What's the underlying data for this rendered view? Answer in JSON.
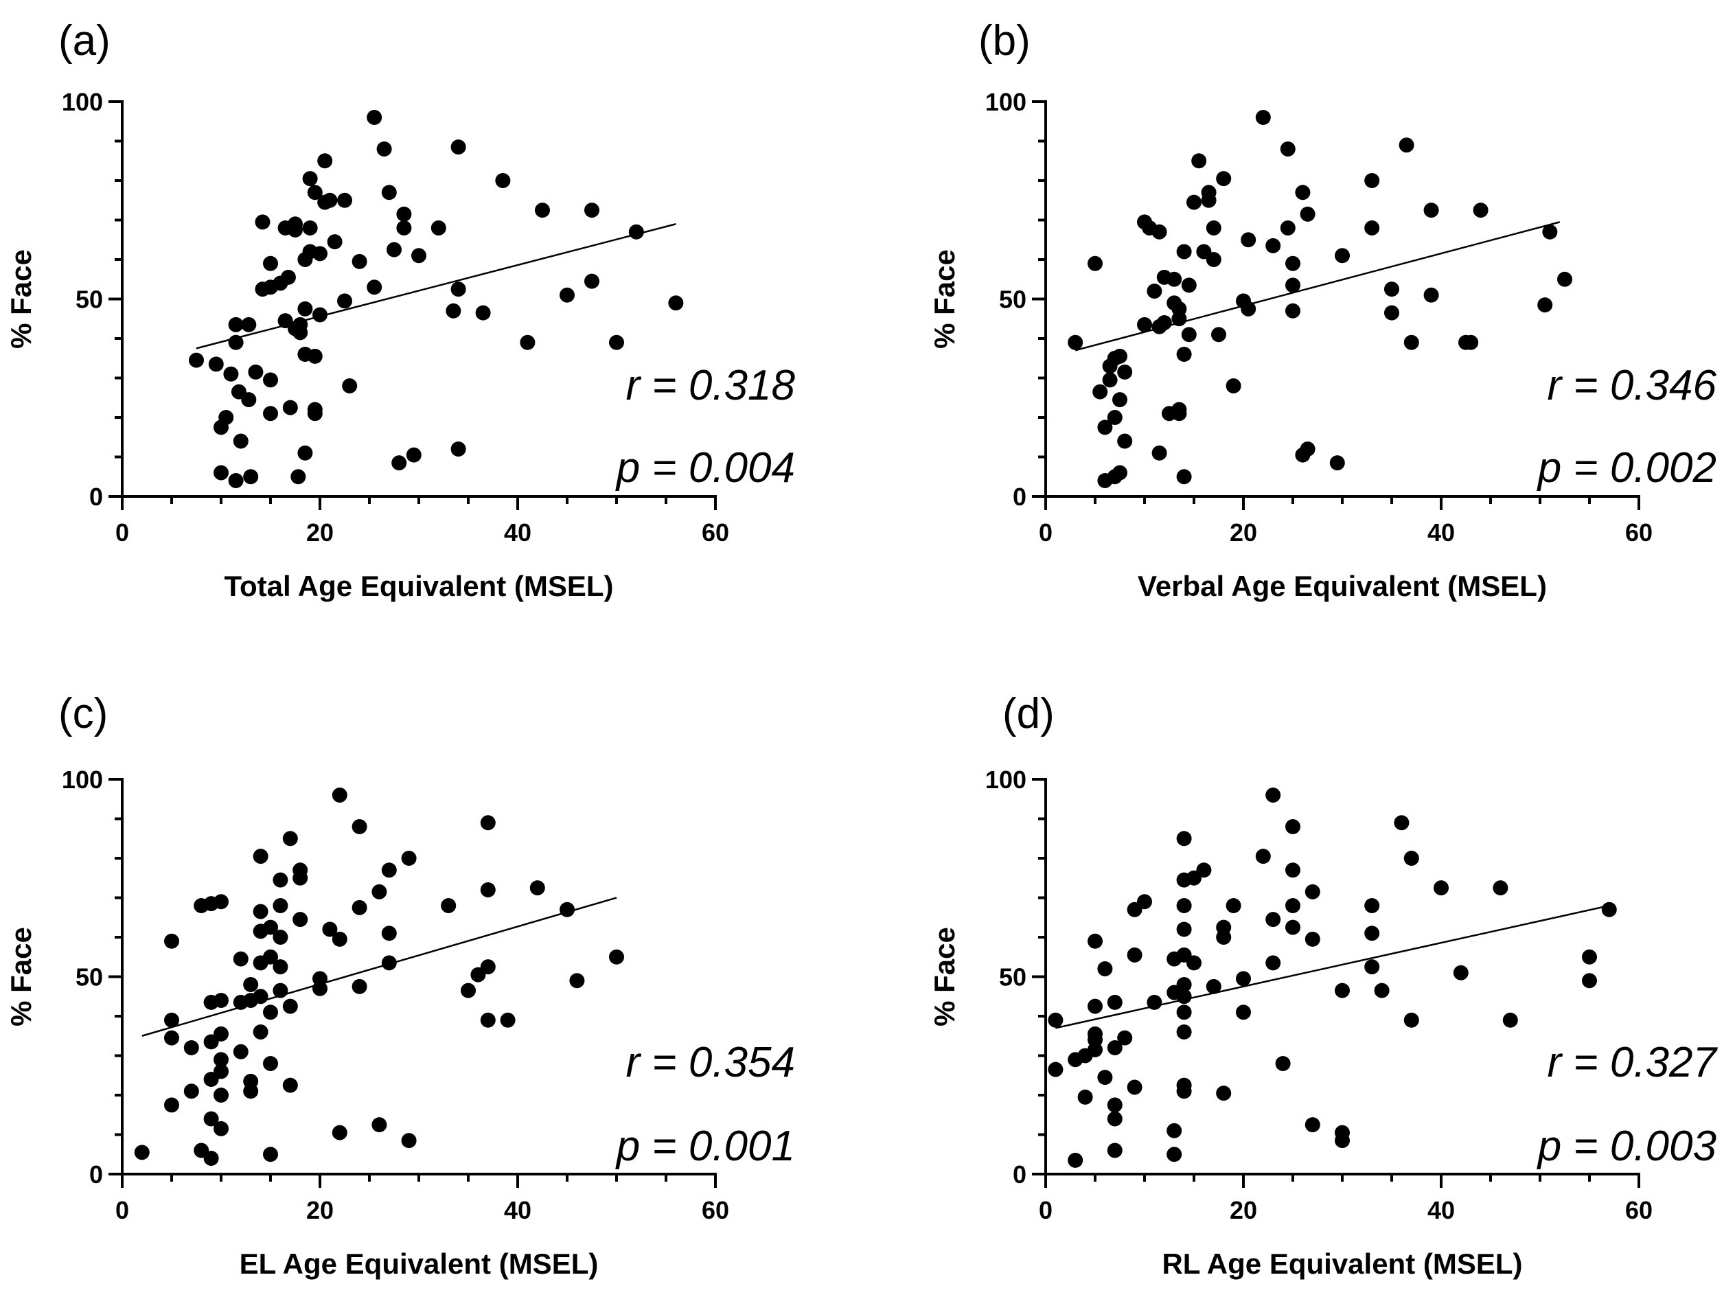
{
  "chart_data": [
    {
      "type": "scatter",
      "panel_label": "(a)",
      "xlabel": "Total Age Equivalent (MSEL)",
      "ylabel": "% Face",
      "xlim": [
        0,
        60
      ],
      "ylim": [
        0,
        100
      ],
      "xticks": [
        0,
        20,
        40,
        60
      ],
      "yticks": [
        0,
        50,
        100
      ],
      "xtick_labels": [
        "0",
        "20",
        "40",
        "60"
      ],
      "ytick_labels": [
        "0",
        "50",
        "100"
      ],
      "r_text": "r = 0.318",
      "p_text": "p = 0.004",
      "fit_line": {
        "x": [
          7.5,
          56
        ],
        "y": [
          37.5,
          69
        ]
      },
      "points": [
        [
          7.5,
          34.5
        ],
        [
          9.5,
          33.5
        ],
        [
          10,
          17.5
        ],
        [
          10.5,
          20
        ],
        [
          10,
          6
        ],
        [
          11,
          31
        ],
        [
          11.5,
          4
        ],
        [
          11.5,
          39
        ],
        [
          11.5,
          43.5
        ],
        [
          11.8,
          26.5
        ],
        [
          12,
          14
        ],
        [
          12.8,
          43.5
        ],
        [
          12.8,
          24.5
        ],
        [
          13,
          5
        ],
        [
          13.5,
          31.5
        ],
        [
          14.2,
          69.5
        ],
        [
          14.2,
          52.5
        ],
        [
          15,
          59
        ],
        [
          15,
          53
        ],
        [
          15,
          29.5
        ],
        [
          15,
          21
        ],
        [
          16,
          54
        ],
        [
          16.5,
          68
        ],
        [
          16.5,
          44.5
        ],
        [
          16.8,
          55.5
        ],
        [
          17,
          22.5
        ],
        [
          17.5,
          67.5
        ],
        [
          17.5,
          69
        ],
        [
          17.5,
          42.5
        ],
        [
          17.8,
          5
        ],
        [
          18,
          43.5
        ],
        [
          18,
          41.5
        ],
        [
          18.5,
          47.5
        ],
        [
          18.5,
          60
        ],
        [
          18.5,
          36
        ],
        [
          18.5,
          11
        ],
        [
          19,
          80.5
        ],
        [
          19,
          62
        ],
        [
          19,
          68
        ],
        [
          19.5,
          77
        ],
        [
          19.5,
          21
        ],
        [
          19.5,
          35.5
        ],
        [
          19.5,
          22
        ],
        [
          20,
          61.5
        ],
        [
          20,
          46
        ],
        [
          20.5,
          85
        ],
        [
          20.5,
          74.5
        ],
        [
          21,
          75
        ],
        [
          21.5,
          64.5
        ],
        [
          22.5,
          75
        ],
        [
          22.5,
          49.5
        ],
        [
          23,
          28
        ],
        [
          24,
          59.5
        ],
        [
          25.5,
          53
        ],
        [
          25.5,
          96
        ],
        [
          26.5,
          88
        ],
        [
          27,
          77
        ],
        [
          27.5,
          62.5
        ],
        [
          28,
          8.5
        ],
        [
          28.5,
          71.5
        ],
        [
          28.5,
          68
        ],
        [
          29.5,
          10.5
        ],
        [
          30,
          61
        ],
        [
          32,
          68
        ],
        [
          34,
          88.5
        ],
        [
          34,
          52.5
        ],
        [
          34,
          12
        ],
        [
          33.5,
          47
        ],
        [
          36.5,
          46.5
        ],
        [
          38.5,
          80
        ],
        [
          41,
          39
        ],
        [
          42.5,
          72.5
        ],
        [
          45,
          51
        ],
        [
          47.5,
          54.5
        ],
        [
          47.5,
          72.5
        ],
        [
          50,
          39
        ],
        [
          52,
          67
        ],
        [
          56,
          49
        ]
      ]
    },
    {
      "type": "scatter",
      "panel_label": "(b)",
      "xlabel": "Verbal Age Equivalent (MSEL)",
      "ylabel": "% Face",
      "xlim": [
        0,
        60
      ],
      "ylim": [
        0,
        100
      ],
      "xticks": [
        0,
        20,
        40,
        60
      ],
      "yticks": [
        0,
        50,
        100
      ],
      "xtick_labels": [
        "0",
        "20",
        "40",
        "60"
      ],
      "ytick_labels": [
        "0",
        "50",
        "100"
      ],
      "r_text": "r = 0.346",
      "p_text": "p = 0.002",
      "fit_line": {
        "x": [
          3,
          52
        ],
        "y": [
          37,
          69.5
        ]
      },
      "points": [
        [
          3,
          39
        ],
        [
          5,
          59
        ],
        [
          5.5,
          26.5
        ],
        [
          6,
          17.5
        ],
        [
          6,
          4
        ],
        [
          6.5,
          29.5
        ],
        [
          6.5,
          33
        ],
        [
          7,
          35
        ],
        [
          7,
          20
        ],
        [
          7.5,
          24.5
        ],
        [
          7,
          5
        ],
        [
          7.5,
          6
        ],
        [
          8,
          14
        ],
        [
          8,
          31.5
        ],
        [
          7.5,
          35.5
        ],
        [
          10,
          43.5
        ],
        [
          10,
          69.5
        ],
        [
          10.5,
          68
        ],
        [
          11,
          52
        ],
        [
          11.5,
          43
        ],
        [
          11.5,
          11
        ],
        [
          11.5,
          67
        ],
        [
          12,
          44
        ],
        [
          12,
          55.5
        ],
        [
          12.5,
          21
        ],
        [
          13,
          55
        ],
        [
          13,
          49
        ],
        [
          13.5,
          22
        ],
        [
          13.5,
          21
        ],
        [
          13.5,
          45
        ],
        [
          13.5,
          47.5
        ],
        [
          14,
          62
        ],
        [
          14,
          36
        ],
        [
          14,
          5
        ],
        [
          14.5,
          53.5
        ],
        [
          14.5,
          41
        ],
        [
          15,
          74.5
        ],
        [
          15.5,
          85
        ],
        [
          16,
          62
        ],
        [
          16.5,
          75
        ],
        [
          16.5,
          77
        ],
        [
          17,
          60
        ],
        [
          17,
          68
        ],
        [
          17.5,
          41
        ],
        [
          18,
          80.5
        ],
        [
          19,
          28
        ],
        [
          20,
          49.5
        ],
        [
          20.5,
          47.5
        ],
        [
          20.5,
          65
        ],
        [
          22,
          96
        ],
        [
          23,
          63.5
        ],
        [
          24.5,
          88
        ],
        [
          24.5,
          68
        ],
        [
          25,
          59
        ],
        [
          25,
          53.5
        ],
        [
          25,
          47
        ],
        [
          26,
          10.5
        ],
        [
          26,
          77
        ],
        [
          26.5,
          71.5
        ],
        [
          26.5,
          12
        ],
        [
          29.5,
          8.5
        ],
        [
          30,
          61
        ],
        [
          33,
          80
        ],
        [
          33,
          68
        ],
        [
          35,
          52.5
        ],
        [
          35,
          46.5
        ],
        [
          36.5,
          89
        ],
        [
          37,
          39
        ],
        [
          39,
          72.5
        ],
        [
          39,
          51
        ],
        [
          42.5,
          39
        ],
        [
          43,
          39
        ],
        [
          44,
          72.5
        ],
        [
          50.5,
          48.5
        ],
        [
          51,
          67
        ],
        [
          52.5,
          55
        ]
      ]
    },
    {
      "type": "scatter",
      "panel_label": "(c)",
      "xlabel": "EL Age Equivalent (MSEL)",
      "ylabel": "% Face",
      "xlim": [
        0,
        60
      ],
      "ylim": [
        0,
        100
      ],
      "xticks": [
        0,
        20,
        40,
        60
      ],
      "yticks": [
        0,
        50,
        100
      ],
      "xtick_labels": [
        "0",
        "20",
        "40",
        "60"
      ],
      "ytick_labels": [
        "0",
        "50",
        "100"
      ],
      "r_text": "r = 0.354",
      "p_text": "p = 0.001",
      "fit_line": {
        "x": [
          2,
          50
        ],
        "y": [
          35,
          70
        ]
      },
      "points": [
        [
          2,
          5.5
        ],
        [
          5,
          59
        ],
        [
          5,
          39
        ],
        [
          5,
          34.5
        ],
        [
          5,
          17.5
        ],
        [
          7,
          32
        ],
        [
          7,
          21
        ],
        [
          8,
          68
        ],
        [
          8,
          6
        ],
        [
          9,
          68.5
        ],
        [
          9,
          43.5
        ],
        [
          9,
          33.5
        ],
        [
          9,
          24
        ],
        [
          9,
          14
        ],
        [
          9,
          4
        ],
        [
          10,
          69
        ],
        [
          10,
          44
        ],
        [
          10,
          35.5
        ],
        [
          10,
          29
        ],
        [
          10,
          26
        ],
        [
          10,
          20
        ],
        [
          10,
          11.5
        ],
        [
          12,
          54.5
        ],
        [
          12,
          43.5
        ],
        [
          12,
          31
        ],
        [
          13,
          48
        ],
        [
          13,
          44
        ],
        [
          13,
          23.5
        ],
        [
          13,
          21
        ],
        [
          14,
          80.5
        ],
        [
          14,
          66.5
        ],
        [
          14,
          61.5
        ],
        [
          14,
          53.5
        ],
        [
          14,
          45
        ],
        [
          14,
          36
        ],
        [
          15,
          62.5
        ],
        [
          15,
          55
        ],
        [
          15,
          41
        ],
        [
          15,
          28
        ],
        [
          15,
          5
        ],
        [
          16,
          74.5
        ],
        [
          16,
          68
        ],
        [
          16,
          60
        ],
        [
          16,
          52.5
        ],
        [
          16,
          46.5
        ],
        [
          17,
          85
        ],
        [
          17,
          42.5
        ],
        [
          17,
          22.5
        ],
        [
          18,
          77
        ],
        [
          18,
          75
        ],
        [
          18,
          64.5
        ],
        [
          20,
          49.5
        ],
        [
          20,
          47
        ],
        [
          21,
          62
        ],
        [
          22,
          96
        ],
        [
          22,
          59.5
        ],
        [
          22,
          10.5
        ],
        [
          24,
          88
        ],
        [
          24,
          67.5
        ],
        [
          24,
          47.5
        ],
        [
          26,
          71.5
        ],
        [
          26,
          12.5
        ],
        [
          27,
          77
        ],
        [
          27,
          61
        ],
        [
          27,
          53.5
        ],
        [
          29,
          80
        ],
        [
          29,
          8.5
        ],
        [
          33,
          68
        ],
        [
          35,
          46.5
        ],
        [
          36,
          50.5
        ],
        [
          37,
          89
        ],
        [
          37,
          72
        ],
        [
          37,
          52.5
        ],
        [
          37,
          39
        ],
        [
          39,
          39
        ],
        [
          42,
          72.5
        ],
        [
          45,
          67
        ],
        [
          46,
          49
        ],
        [
          50,
          55
        ]
      ]
    },
    {
      "type": "scatter",
      "panel_label": "(d)",
      "xlabel": "RL Age Equivalent (MSEL)",
      "ylabel": "% Face",
      "xlim": [
        0,
        60
      ],
      "ylim": [
        0,
        100
      ],
      "xticks": [
        0,
        20,
        40,
        60
      ],
      "yticks": [
        0,
        50,
        100
      ],
      "xtick_labels": [
        "0",
        "20",
        "40",
        "60"
      ],
      "ytick_labels": [
        "0",
        "50",
        "100"
      ],
      "r_text": "r = 0.327",
      "p_text": "p = 0.003",
      "fit_line": {
        "x": [
          1,
          57
        ],
        "y": [
          37,
          68
        ]
      },
      "points": [
        [
          1,
          39
        ],
        [
          1,
          26.5
        ],
        [
          3,
          29
        ],
        [
          3,
          3.5
        ],
        [
          4,
          30
        ],
        [
          4,
          19.5
        ],
        [
          5,
          59
        ],
        [
          5,
          42.5
        ],
        [
          5,
          35.5
        ],
        [
          5,
          34
        ],
        [
          5,
          31.5
        ],
        [
          6,
          52
        ],
        [
          6,
          24.5
        ],
        [
          7,
          43.5
        ],
        [
          7,
          32
        ],
        [
          7,
          17.5
        ],
        [
          7,
          14
        ],
        [
          7,
          6
        ],
        [
          8,
          34.5
        ],
        [
          9,
          67
        ],
        [
          9,
          55.5
        ],
        [
          9,
          22
        ],
        [
          10,
          69
        ],
        [
          11,
          43.5
        ],
        [
          13,
          54.5
        ],
        [
          13,
          46
        ],
        [
          13,
          11
        ],
        [
          13,
          5
        ],
        [
          14,
          85
        ],
        [
          14,
          74.5
        ],
        [
          14,
          68
        ],
        [
          14,
          62
        ],
        [
          14,
          55.5
        ],
        [
          14,
          48
        ],
        [
          14,
          45
        ],
        [
          14,
          41
        ],
        [
          14,
          36
        ],
        [
          14,
          22.5
        ],
        [
          14,
          21
        ],
        [
          15,
          53.5
        ],
        [
          15,
          75
        ],
        [
          16,
          77
        ],
        [
          17,
          47.5
        ],
        [
          18,
          62.5
        ],
        [
          18,
          60
        ],
        [
          18,
          20.5
        ],
        [
          19,
          68
        ],
        [
          20,
          49.5
        ],
        [
          20,
          41
        ],
        [
          22,
          80.5
        ],
        [
          23,
          96
        ],
        [
          23,
          64.5
        ],
        [
          23,
          53.5
        ],
        [
          24,
          28
        ],
        [
          25,
          88
        ],
        [
          25,
          77
        ],
        [
          25,
          68
        ],
        [
          25,
          62.5
        ],
        [
          27,
          71.5
        ],
        [
          27,
          59.5
        ],
        [
          27,
          12.5
        ],
        [
          30,
          46.5
        ],
        [
          30,
          10.5
        ],
        [
          30,
          8.5
        ],
        [
          33,
          68
        ],
        [
          33,
          61
        ],
        [
          33,
          52.5
        ],
        [
          34,
          46.5
        ],
        [
          36,
          89
        ],
        [
          37,
          80
        ],
        [
          37,
          39
        ],
        [
          40,
          72.5
        ],
        [
          42,
          51
        ],
        [
          46,
          72.5
        ],
        [
          47,
          39
        ],
        [
          55,
          55
        ],
        [
          55,
          49
        ],
        [
          57,
          67
        ]
      ]
    }
  ]
}
